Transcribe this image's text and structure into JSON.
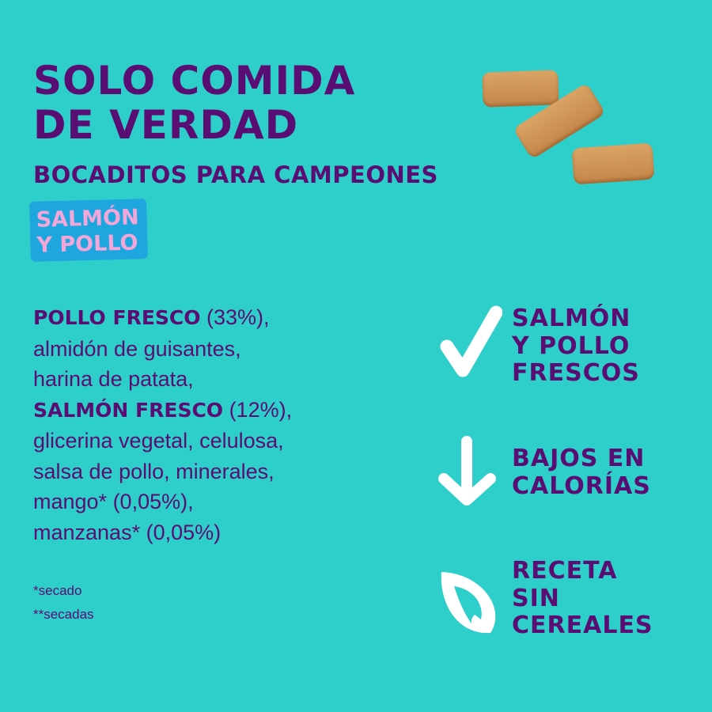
{
  "header": {
    "title_lines": [
      "SOLO COMIDA",
      "DE VERDAD"
    ],
    "subtitle": "BOCADITOS PARA CAMPEONES",
    "flavor_badge": [
      "SALMÓN",
      "Y POLLO"
    ]
  },
  "ingredients": [
    {
      "bold": "POLLO FRESCO",
      "text": " (33%),"
    },
    {
      "bold": "",
      "text": "almidón de guisantes,"
    },
    {
      "bold": "",
      "text": "harina de patata,"
    },
    {
      "bold": "SALMÓN FRESCO",
      "text": " (12%),"
    },
    {
      "bold": "",
      "text": "glicerina vegetal, celulosa,"
    },
    {
      "bold": "",
      "text": "salsa de pollo, minerales,"
    },
    {
      "bold": "",
      "text": "mango* (0,05%),"
    },
    {
      "bold": "",
      "text": "manzanas* (0,05%)"
    }
  ],
  "footnotes": [
    "*secado",
    "**secadas"
  ],
  "features": [
    {
      "icon": "checkmark-icon",
      "lines": [
        "SALMÓN",
        "Y POLLO",
        "FRESCOS"
      ]
    },
    {
      "icon": "down-arrow-icon",
      "lines": [
        "BAJOS EN",
        "CALORÍAS"
      ]
    },
    {
      "icon": "leaf-icon",
      "lines": [
        "RECETA",
        "SIN",
        "CEREALES"
      ]
    }
  ],
  "colors": {
    "background": "#2ecfca",
    "text": "#5a0d72",
    "badge": "#1ea7df",
    "badge_text": "#f5a6d8",
    "icon": "#ffffff"
  }
}
